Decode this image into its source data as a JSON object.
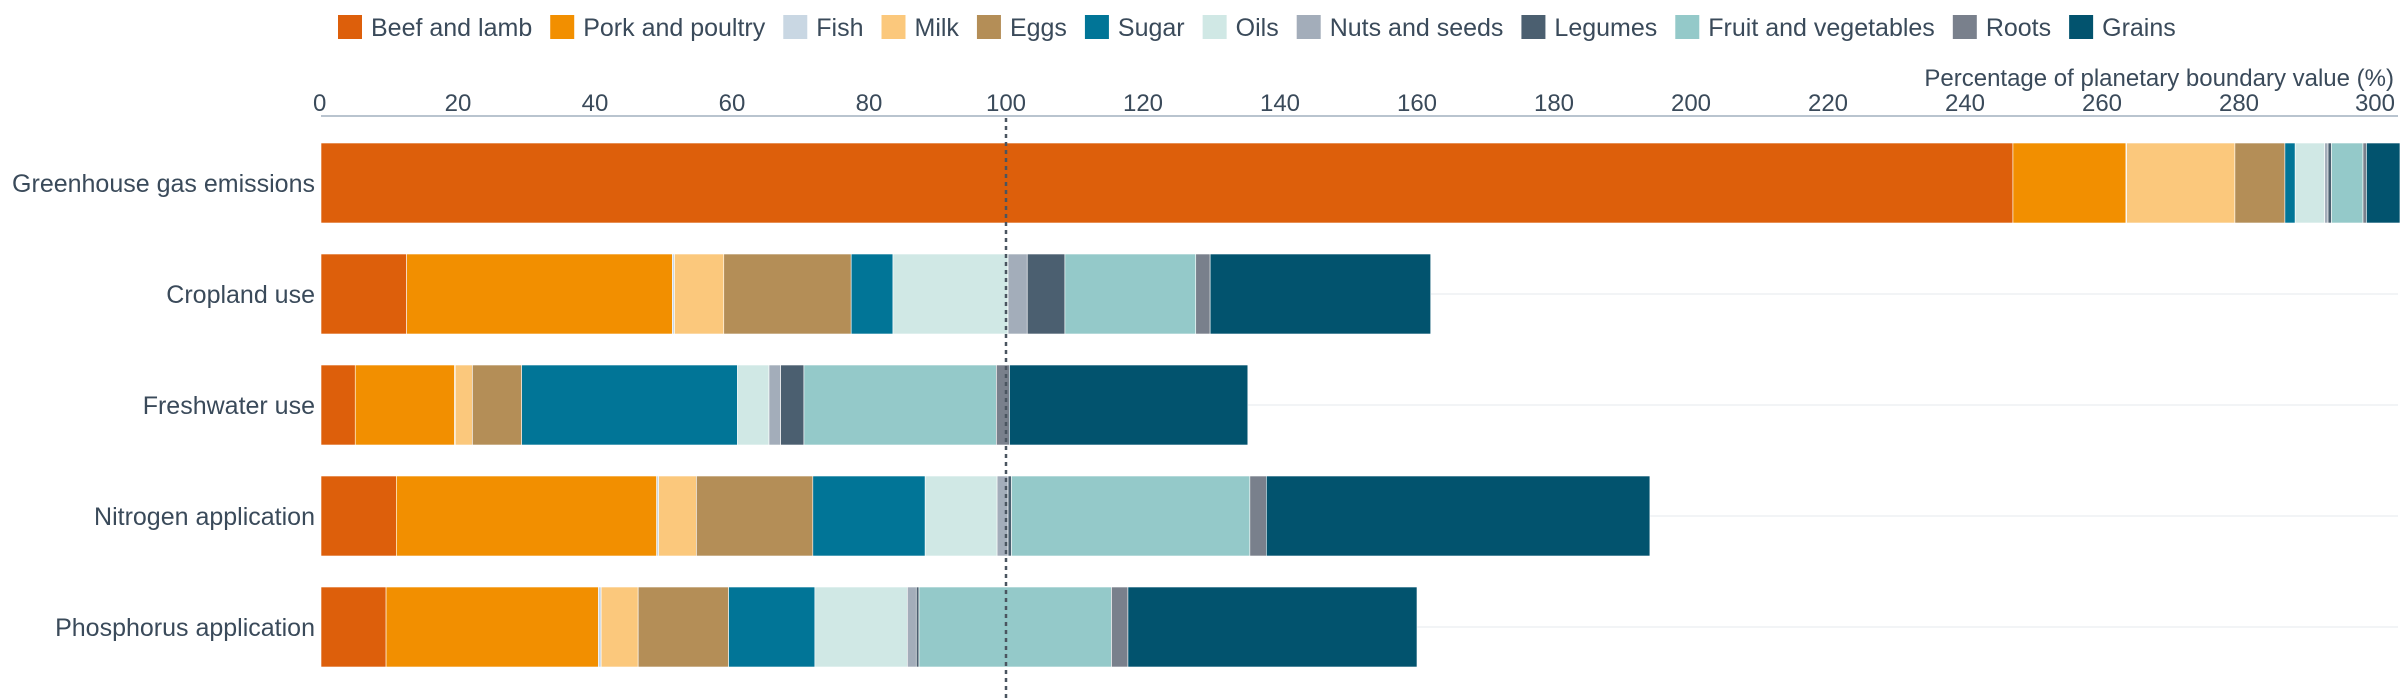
{
  "chart_data": {
    "type": "bar",
    "orientation": "horizontal",
    "stacked": true,
    "xlabel": "Percentage of planetary boundary value (%)",
    "xlim": [
      0,
      300
    ],
    "xticks": [
      0,
      20,
      40,
      60,
      80,
      100,
      120,
      140,
      160,
      180,
      200,
      220,
      240,
      260,
      280,
      300
    ],
    "reference_line": 100,
    "legend_position": "top",
    "grid": "horizontal row guides",
    "categories": [
      "Greenhouse gas emissions",
      "Cropland use",
      "Freshwater use",
      "Nitrogen application",
      "Phosphorus application"
    ],
    "series": [
      {
        "name": "Beef and lamb",
        "color": "#dd5f0b",
        "values": [
          247,
          12.5,
          5,
          11,
          9.5
        ]
      },
      {
        "name": "Pork and poultry",
        "color": "#f28f00",
        "values": [
          16.5,
          38.8,
          14.5,
          38,
          31
        ]
      },
      {
        "name": "Fish",
        "color": "#c9d7e3",
        "values": [
          0.1,
          0.3,
          0.1,
          0.3,
          0.4
        ]
      },
      {
        "name": "Milk",
        "color": "#fbc87c",
        "values": [
          15.8,
          7.2,
          2.5,
          5.5,
          5.4
        ]
      },
      {
        "name": "Eggs",
        "color": "#b48e57",
        "values": [
          7.3,
          18.6,
          7.2,
          17,
          13.2
        ]
      },
      {
        "name": "Sugar",
        "color": "#017597",
        "values": [
          1.5,
          6.1,
          31.5,
          16.4,
          12.6
        ]
      },
      {
        "name": "Oils",
        "color": "#d0e8e5",
        "values": [
          4.3,
          16.8,
          4.6,
          10.5,
          13.5
        ]
      },
      {
        "name": "Nuts and seeds",
        "color": "#a3adba",
        "values": [
          0.5,
          2.8,
          1.7,
          1.6,
          1.3
        ]
      },
      {
        "name": "Legumes",
        "color": "#4b5f70",
        "values": [
          0.5,
          5.5,
          3.4,
          0.5,
          0.4
        ]
      },
      {
        "name": "Fruit and vegetables",
        "color": "#94c9c9",
        "values": [
          4.6,
          19.1,
          28.1,
          34.8,
          28.1
        ]
      },
      {
        "name": "Roots",
        "color": "#79808c",
        "values": [
          0.5,
          2.1,
          1.9,
          2.4,
          2.4
        ]
      },
      {
        "name": "Grains",
        "color": "#02536e",
        "values": [
          4.9,
          32.2,
          34.8,
          56,
          42.2
        ]
      }
    ]
  }
}
